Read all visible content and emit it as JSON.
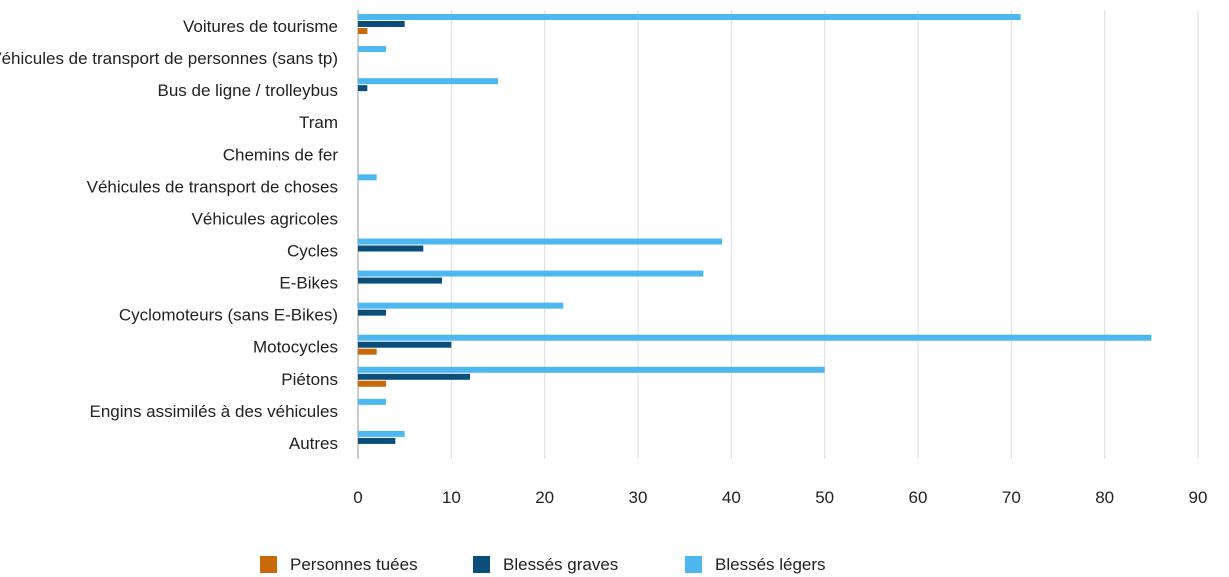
{
  "chart_data": {
    "type": "bar",
    "orientation": "horizontal",
    "categories": [
      "Voitures de tourisme",
      "Véhicules de transport de personnes (sans tp)",
      "Bus de ligne / trolleybus",
      "Tram",
      "Chemins de fer",
      "Véhicules de transport de choses",
      "Véhicules agricoles",
      "Cycles",
      "E-Bikes",
      "Cyclomoteurs (sans E-Bikes)",
      "Motocycles",
      "Piétons",
      "Engins assimilés à des véhicules",
      "Autres"
    ],
    "series": [
      {
        "name": "Blessés légers",
        "color": "#4db8f0",
        "values": [
          71,
          3,
          15,
          0,
          0,
          2,
          0,
          39,
          37,
          22,
          85,
          50,
          3,
          5
        ]
      },
      {
        "name": "Blessés graves",
        "color": "#0b4e79",
        "values": [
          5,
          0,
          1,
          0,
          0,
          0,
          0,
          7,
          9,
          3,
          10,
          12,
          0,
          4
        ]
      },
      {
        "name": "Personnes tuées",
        "color": "#c8690a",
        "values": [
          1,
          0,
          0,
          0,
          0,
          0,
          0,
          0,
          0,
          0,
          2,
          3,
          0,
          0
        ]
      }
    ],
    "legend_order": [
      "Personnes tuées",
      "Blessés graves",
      "Blessés légers"
    ],
    "xlim": [
      0,
      90
    ],
    "xticks": [
      0,
      10,
      20,
      30,
      40,
      50,
      60,
      70,
      80,
      90
    ],
    "grid": true,
    "legend_position": "bottom-center"
  }
}
